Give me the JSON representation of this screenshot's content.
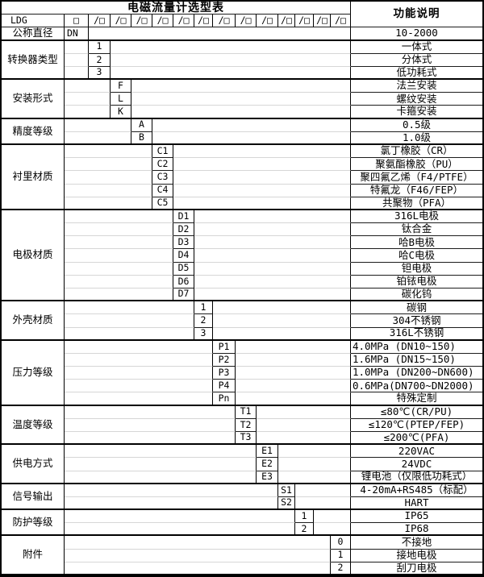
{
  "header": {
    "title": "电磁流量计选型表",
    "function_column": "功能说明",
    "model_code": "LDG",
    "first_box": "□",
    "slots": [
      "/□",
      "/□",
      "/□",
      "/□",
      "/□",
      "/□",
      "/□",
      "/□",
      "/□",
      "/□",
      "/□",
      "/□",
      "/□"
    ]
  },
  "sections": [
    {
      "label": "公称直径",
      "slot": 0,
      "rows": [
        {
          "code": "DN",
          "desc": "10-2000"
        }
      ]
    },
    {
      "label": "转换器类型",
      "slot": 1,
      "rows": [
        {
          "code": "1",
          "desc": "一体式"
        },
        {
          "code": "2",
          "desc": "分体式"
        },
        {
          "code": "3",
          "desc": "低功耗式"
        }
      ]
    },
    {
      "label": "安装形式",
      "slot": 2,
      "rows": [
        {
          "code": "F",
          "desc": "法兰安装"
        },
        {
          "code": "L",
          "desc": "螺纹安装"
        },
        {
          "code": "K",
          "desc": "卡箍安装"
        }
      ]
    },
    {
      "label": "精度等级",
      "slot": 3,
      "rows": [
        {
          "code": "A",
          "desc": "0.5级"
        },
        {
          "code": "B",
          "desc": "1.0级"
        }
      ]
    },
    {
      "label": "衬里材质",
      "slot": 4,
      "rows": [
        {
          "code": "C1",
          "desc": "氯丁橡胶（CR）"
        },
        {
          "code": "C2",
          "desc": "聚氨酯橡胶（PU）"
        },
        {
          "code": "C3",
          "desc": "聚四氟乙烯（F4/PTFE）"
        },
        {
          "code": "C4",
          "desc": "特氟龙（F46/FEP）"
        },
        {
          "code": "C5",
          "desc": "共聚物（PFA）"
        }
      ]
    },
    {
      "label": "电极材质",
      "slot": 5,
      "rows": [
        {
          "code": "D1",
          "desc": "316L电极"
        },
        {
          "code": "D2",
          "desc": "钛合金"
        },
        {
          "code": "D3",
          "desc": "哈B电极"
        },
        {
          "code": "D4",
          "desc": "哈C电极"
        },
        {
          "code": "D5",
          "desc": "钽电极"
        },
        {
          "code": "D6",
          "desc": "铂铱电极"
        },
        {
          "code": "D7",
          "desc": "碳化钨"
        }
      ]
    },
    {
      "label": "外壳材质",
      "slot": 6,
      "rows": [
        {
          "code": "1",
          "desc": "碳钢"
        },
        {
          "code": "2",
          "desc": "304不锈钢"
        },
        {
          "code": "3",
          "desc": "316L不锈钢"
        }
      ]
    },
    {
      "label": "压力等级",
      "slot": 7,
      "rows": [
        {
          "code": "P1",
          "desc": "4.0MPa (DN10~150)",
          "align": "left"
        },
        {
          "code": "P2",
          "desc": "1.6MPa (DN15~150)",
          "align": "left"
        },
        {
          "code": "P3",
          "desc": "1.0MPa (DN200~DN600)",
          "align": "left"
        },
        {
          "code": "P4",
          "desc": "0.6MPa(DN700~DN2000)",
          "align": "left"
        },
        {
          "code": "Pn",
          "desc": "特殊定制"
        }
      ]
    },
    {
      "label": "温度等级",
      "slot": 8,
      "rows": [
        {
          "code": "T1",
          "desc": "≤80℃(CR/PU)"
        },
        {
          "code": "T2",
          "desc": "≤120℃(PTEP/FEP)"
        },
        {
          "code": "T3",
          "desc": "≤200℃(PFA)"
        }
      ]
    },
    {
      "label": "供电方式",
      "slot": 9,
      "rows": [
        {
          "code": "E1",
          "desc": "220VAC"
        },
        {
          "code": "E2",
          "desc": "24VDC"
        },
        {
          "code": "E3",
          "desc": "锂电池（仅限低功耗式）"
        }
      ]
    },
    {
      "label": "信号输出",
      "slot": 10,
      "rows": [
        {
          "code": "S1",
          "desc": "4-20mA+RS485（标配）"
        },
        {
          "code": "S2",
          "desc": "HART"
        }
      ]
    },
    {
      "label": "防护等级",
      "slot": 11,
      "rows": [
        {
          "code": "1",
          "desc": "IP65"
        },
        {
          "code": "2",
          "desc": "IP68"
        }
      ]
    },
    {
      "label": "附件",
      "slot": 13,
      "rows": [
        {
          "code": "0",
          "desc": "不接地"
        },
        {
          "code": "1",
          "desc": "接地电极"
        },
        {
          "code": "2",
          "desc": "刮刀电极"
        }
      ]
    }
  ]
}
